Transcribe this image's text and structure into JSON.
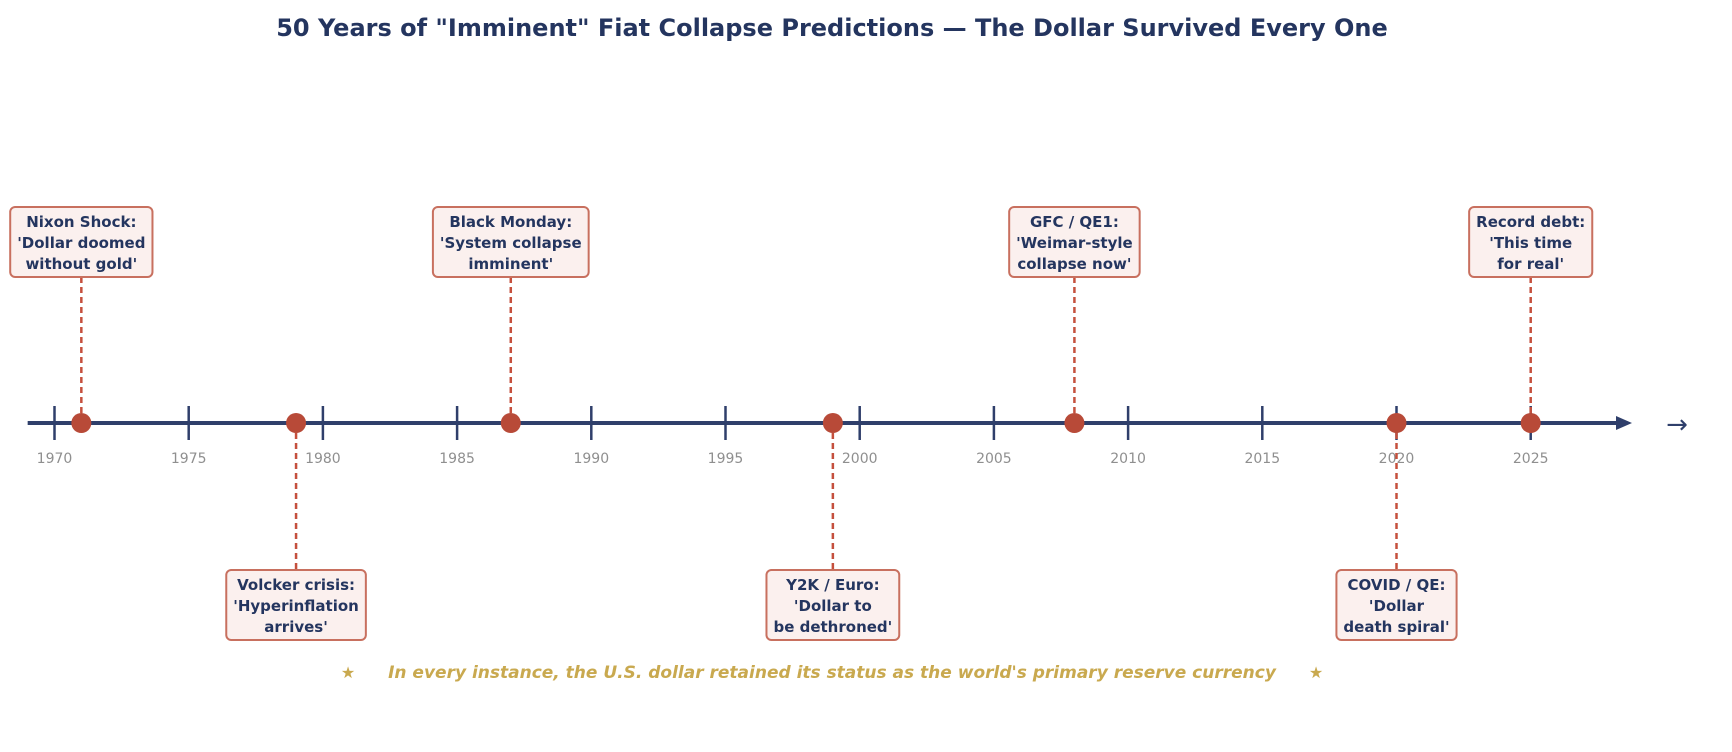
{
  "title": "50 Years of \"Imminent\" Fiat Collapse Predictions — The Dollar Survived Every One",
  "axis": {
    "min": 1969,
    "max": 2028.5,
    "ticks": [
      1970,
      1975,
      1980,
      1985,
      1990,
      1995,
      2000,
      2005,
      2010,
      2015,
      2020,
      2025
    ],
    "end_arrow_glyph": "→"
  },
  "events": [
    {
      "year": 1971,
      "side": "above",
      "lines": [
        "Nixon Shock:",
        "'Dollar doomed",
        "without gold'"
      ]
    },
    {
      "year": 1979,
      "side": "below",
      "lines": [
        "Volcker crisis:",
        "'Hyperinflation",
        "arrives'"
      ]
    },
    {
      "year": 1987,
      "side": "above",
      "lines": [
        "Black Monday:",
        "'System collapse",
        "imminent'"
      ]
    },
    {
      "year": 1999,
      "side": "below",
      "lines": [
        "Y2K / Euro:",
        "'Dollar to",
        "be dethroned'"
      ]
    },
    {
      "year": 2008,
      "side": "above",
      "lines": [
        "GFC / QE1:",
        "'Weimar-style",
        "collapse now'"
      ]
    },
    {
      "year": 2020,
      "side": "below",
      "lines": [
        "COVID / QE:",
        "'Dollar",
        "death spiral'"
      ]
    },
    {
      "year": 2025,
      "side": "above",
      "lines": [
        "Record debt:",
        "'This time",
        "for real'"
      ]
    }
  ],
  "footer": {
    "star": "★",
    "text": "In every instance, the U.S. dollar retained its status as the world's primary reserve currency"
  },
  "colors": {
    "title": "#24355f",
    "axis": "#2f3f6b",
    "event_marker": "#b84a38",
    "connector": "#c5503d",
    "box_border": "#c8705f",
    "box_fill": "#fbf0ee",
    "box_text": "#24355f",
    "tick_label": "#8f8f8f",
    "footer_text": "#c9a94f"
  }
}
